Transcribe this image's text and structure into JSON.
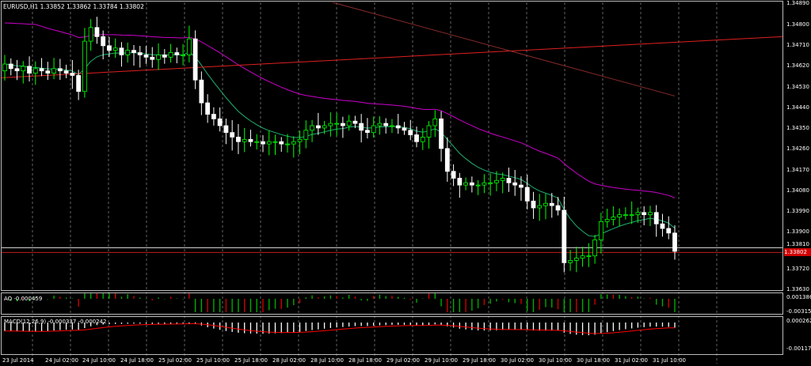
{
  "title": "EURUSD,H1  1.33852 1.33862 1.33784 1.33802",
  "current_price": "1.33802",
  "price_labels": [
    "1.34890",
    "1.34800",
    "1.34710",
    "1.34620",
    "1.34530",
    "1.34440",
    "1.34350",
    "1.34260",
    "1.34170",
    "1.34080",
    "1.33990",
    "1.33900",
    "1.33810",
    "1.33720",
    "1.33630"
  ],
  "time_labels": [
    "23 Jul 2014",
    "24 Jul 02:00",
    "24 Jul 10:00",
    "24 Jul 18:00",
    "25 Jul 02:00",
    "25 Jul 10:00",
    "25 Jul 18:00",
    "28 Jul 02:00",
    "28 Jul 10:00",
    "28 Jul 18:00",
    "29 Jul 02:00",
    "29 Jul 10:00",
    "29 Jul 18:00",
    "30 Jul 02:00",
    "30 Jul 10:00",
    "30 Jul 18:00",
    "31 Jul 02:00",
    "31 Jul 10:00"
  ],
  "ao": {
    "label": "AO -0.000459",
    "scale": [
      "0.001386",
      "-0.003151"
    ]
  },
  "macd": {
    "label": "MACD(12,26,9) -0.000337 -0.000242",
    "scale": [
      "0.000262",
      "-0.001172"
    ]
  },
  "colors": {
    "bull": "#00ff00",
    "bear": "#ffffff",
    "ma_slow": "#cc00cc",
    "ma_fast": "#20b070",
    "trend": "#e02020",
    "ma_long": "#8a2a2a",
    "grid": "#cccccc",
    "macd_signal": "#ff0000"
  },
  "chart_data": {
    "type": "candlestick",
    "symbol": "EURUSD",
    "timeframe": "H1",
    "ylim": [
      1.3363,
      1.3489
    ],
    "current_price": 1.33802,
    "close_estimates": [
      1.3462,
      1.346,
      1.3459,
      1.3461,
      1.3458,
      1.346,
      1.3459,
      1.3458,
      1.346,
      1.3459,
      1.3458,
      1.3457,
      1.345,
      1.3472,
      1.3478,
      1.3474,
      1.347,
      1.3468,
      1.3469,
      1.3466,
      1.3468,
      1.3467,
      1.3466,
      1.3465,
      1.3464,
      1.3466,
      1.3465,
      1.3467,
      1.3466,
      1.3466,
      1.3473,
      1.3455,
      1.3445,
      1.344,
      1.3438,
      1.3435,
      1.3432,
      1.343,
      1.3428,
      1.3429,
      1.3428,
      1.3428,
      1.3427,
      1.3428,
      1.3428,
      1.3427,
      1.3427,
      1.3428,
      1.3429,
      1.3433,
      1.3435,
      1.3434,
      1.3435,
      1.3436,
      1.3436,
      1.3435,
      1.3437,
      1.3436,
      1.3433,
      1.3432,
      1.3435,
      1.3436,
      1.3435,
      1.3435,
      1.3434,
      1.3433,
      1.3431,
      1.3428,
      1.343,
      1.3435,
      1.3438,
      1.3425,
      1.3415,
      1.3412,
      1.3409,
      1.341,
      1.3409,
      1.3409,
      1.341,
      1.341,
      1.3411,
      1.3412,
      1.341,
      1.3409,
      1.3408,
      1.3402,
      1.3399,
      1.34,
      1.3401,
      1.34,
      1.3398,
      1.3375,
      1.3376,
      1.3377,
      1.3378,
      1.3378,
      1.3385,
      1.3393,
      1.3394,
      1.3395,
      1.3396,
      1.3396,
      1.3396,
      1.3397,
      1.3396,
      1.3397,
      1.3392,
      1.339,
      1.3388,
      1.338
    ],
    "indicators": [
      {
        "name": "AO",
        "value": -0.000459
      },
      {
        "name": "MACD(12,26,9)",
        "values": [
          -0.000337,
          -0.000242
        ]
      }
    ]
  }
}
